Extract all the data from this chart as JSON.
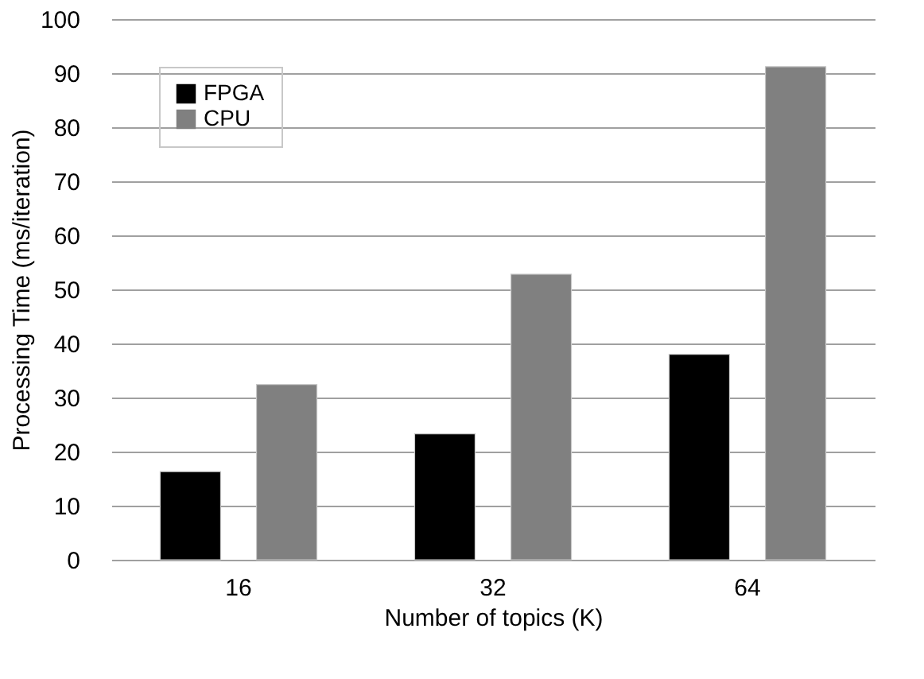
{
  "chart_data": {
    "type": "bar",
    "xlabel": "Number of topics (K)",
    "ylabel": "Processing Time (ms/iteration)",
    "categories": [
      "16",
      "32",
      "64"
    ],
    "series": [
      {
        "name": "FPGA",
        "color": "#000000",
        "values": [
          16.3,
          23.3,
          38.0
        ]
      },
      {
        "name": "CPU",
        "color": "#808080",
        "values": [
          32.4,
          52.8,
          91.2
        ]
      }
    ],
    "ylim": [
      0,
      100
    ],
    "yticks": [
      0,
      10,
      20,
      30,
      40,
      50,
      60,
      70,
      80,
      90,
      100
    ],
    "grid": "y",
    "legend": "top left"
  }
}
